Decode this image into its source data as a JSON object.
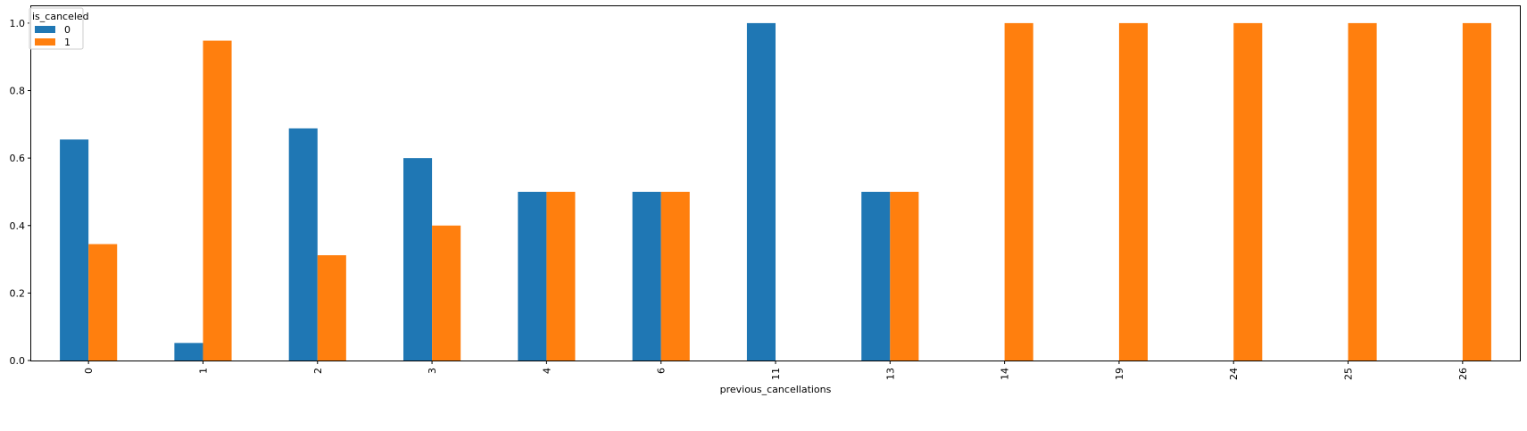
{
  "chart_data": {
    "type": "bar",
    "categories": [
      "0",
      "1",
      "2",
      "3",
      "4",
      "6",
      "11",
      "13",
      "14",
      "19",
      "24",
      "25",
      "26"
    ],
    "series": [
      {
        "name": "0",
        "color": "#1f77b4",
        "values": [
          0.655,
          0.052,
          0.688,
          0.6,
          0.5,
          0.5,
          1.0,
          0.5,
          0,
          0,
          0,
          0,
          0
        ]
      },
      {
        "name": "1",
        "color": "#ff7f0e",
        "values": [
          0.345,
          0.948,
          0.312,
          0.4,
          0.5,
          0.5,
          0,
          0.5,
          1.0,
          1.0,
          1.0,
          1.0,
          1.0
        ]
      }
    ],
    "xlabel": "previous_cancellations",
    "ylabel": "",
    "ylim": [
      0,
      1.05
    ],
    "yticks": [
      "0.0",
      "0.2",
      "0.4",
      "0.6",
      "0.8",
      "1.0"
    ],
    "ytick_values": [
      0,
      0.2,
      0.4,
      0.6,
      0.8,
      1.0
    ],
    "legend": {
      "title": "is_canceled",
      "placement": "top-left"
    },
    "grid": false
  }
}
